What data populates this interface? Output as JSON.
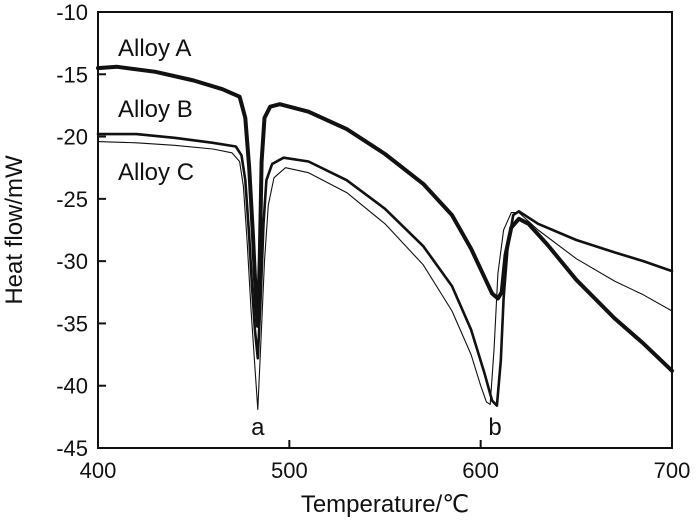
{
  "chart_data": {
    "type": "line",
    "title": "",
    "xlabel": "Temperature/℃",
    "ylabel": "Heat flow/mW",
    "xlim": [
      400,
      700
    ],
    "ylim": [
      -45,
      -10
    ],
    "x_ticks": [
      400,
      500,
      600,
      700
    ],
    "y_ticks": [
      -10,
      -15,
      -20,
      -25,
      -30,
      -35,
      -40,
      -45
    ],
    "grid": false,
    "series": [
      {
        "name": "Alloy A",
        "label": "Alloy A",
        "stroke_width": 4,
        "points": [
          [
            400,
            -14.5
          ],
          [
            410,
            -14.4
          ],
          [
            430,
            -14.8
          ],
          [
            450,
            -15.5
          ],
          [
            465,
            -16.2
          ],
          [
            474,
            -16.8
          ],
          [
            477,
            -18.5
          ],
          [
            479,
            -22.5
          ],
          [
            481,
            -28
          ],
          [
            482.5,
            -33
          ],
          [
            483.5,
            -35.2
          ],
          [
            484.5,
            -30
          ],
          [
            485.5,
            -22
          ],
          [
            487,
            -18.5
          ],
          [
            490,
            -17.6
          ],
          [
            495,
            -17.4
          ],
          [
            510,
            -18
          ],
          [
            530,
            -19.4
          ],
          [
            550,
            -21.4
          ],
          [
            570,
            -23.8
          ],
          [
            585,
            -26.3
          ],
          [
            595,
            -29
          ],
          [
            602,
            -31.3
          ],
          [
            606,
            -32.6
          ],
          [
            609,
            -33
          ],
          [
            611,
            -32.5
          ],
          [
            613,
            -29.5
          ],
          [
            616,
            -27.3
          ],
          [
            620,
            -26.6
          ],
          [
            625,
            -27
          ],
          [
            635,
            -28.7
          ],
          [
            650,
            -31.5
          ],
          [
            670,
            -34.6
          ],
          [
            685,
            -36.6
          ],
          [
            700,
            -38.8
          ]
        ]
      },
      {
        "name": "Alloy B",
        "label": "Alloy B",
        "stroke_width": 2.6,
        "points": [
          [
            400,
            -19.8
          ],
          [
            420,
            -19.8
          ],
          [
            440,
            -20.1
          ],
          [
            460,
            -20.5
          ],
          [
            472,
            -20.8
          ],
          [
            475,
            -21.5
          ],
          [
            477,
            -23.5
          ],
          [
            479,
            -28
          ],
          [
            480.5,
            -32
          ],
          [
            482,
            -35.5
          ],
          [
            483.5,
            -37.8
          ],
          [
            485,
            -33
          ],
          [
            486.5,
            -27
          ],
          [
            488,
            -23.5
          ],
          [
            491,
            -22.2
          ],
          [
            497,
            -21.7
          ],
          [
            510,
            -22
          ],
          [
            530,
            -23.5
          ],
          [
            550,
            -25.8
          ],
          [
            570,
            -28.8
          ],
          [
            585,
            -32
          ],
          [
            595,
            -35.5
          ],
          [
            602,
            -39
          ],
          [
            606,
            -41.2
          ],
          [
            608.5,
            -41.6
          ],
          [
            610.5,
            -38
          ],
          [
            612,
            -33
          ],
          [
            614,
            -29
          ],
          [
            617,
            -26.3
          ],
          [
            620,
            -26
          ],
          [
            630,
            -27
          ],
          [
            650,
            -28.3
          ],
          [
            670,
            -29.3
          ],
          [
            685,
            -30
          ],
          [
            700,
            -30.8
          ]
        ]
      },
      {
        "name": "Alloy C",
        "label": "Alloy C",
        "stroke_width": 1.1,
        "points": [
          [
            400,
            -20.4
          ],
          [
            420,
            -20.5
          ],
          [
            440,
            -20.7
          ],
          [
            460,
            -21
          ],
          [
            470,
            -21.3
          ],
          [
            474,
            -22
          ],
          [
            476,
            -24
          ],
          [
            478,
            -28.5
          ],
          [
            480,
            -34
          ],
          [
            482,
            -38.5
          ],
          [
            483.5,
            -41.9
          ],
          [
            485,
            -37
          ],
          [
            487,
            -30
          ],
          [
            489,
            -25.5
          ],
          [
            492,
            -23.3
          ],
          [
            498,
            -22.5
          ],
          [
            510,
            -22.9
          ],
          [
            530,
            -24.5
          ],
          [
            550,
            -27
          ],
          [
            570,
            -30.3
          ],
          [
            585,
            -34
          ],
          [
            595,
            -37.5
          ],
          [
            600,
            -40
          ],
          [
            603,
            -41.3
          ],
          [
            605,
            -41.5
          ],
          [
            607,
            -37
          ],
          [
            609,
            -31
          ],
          [
            612,
            -27.5
          ],
          [
            616,
            -26.1
          ],
          [
            620,
            -26.1
          ],
          [
            630,
            -27.5
          ],
          [
            650,
            -29.8
          ],
          [
            670,
            -31.6
          ],
          [
            685,
            -32.7
          ],
          [
            700,
            -34
          ]
        ]
      }
    ],
    "annotations": [
      {
        "text": "a",
        "x": 483.5,
        "y": -43.3
      },
      {
        "text": "b",
        "x": 607.5,
        "y": -43.3
      }
    ]
  }
}
